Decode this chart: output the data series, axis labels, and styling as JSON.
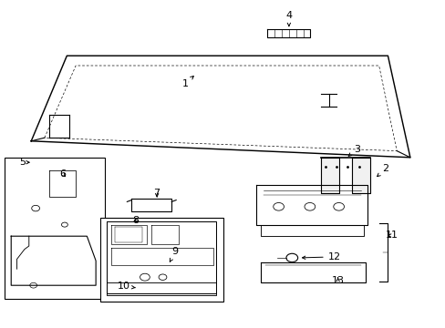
{
  "bg_color": "#ffffff",
  "line_color": "#000000",
  "label_color": "#000000",
  "font_size": 8,
  "line_width": 0.8
}
